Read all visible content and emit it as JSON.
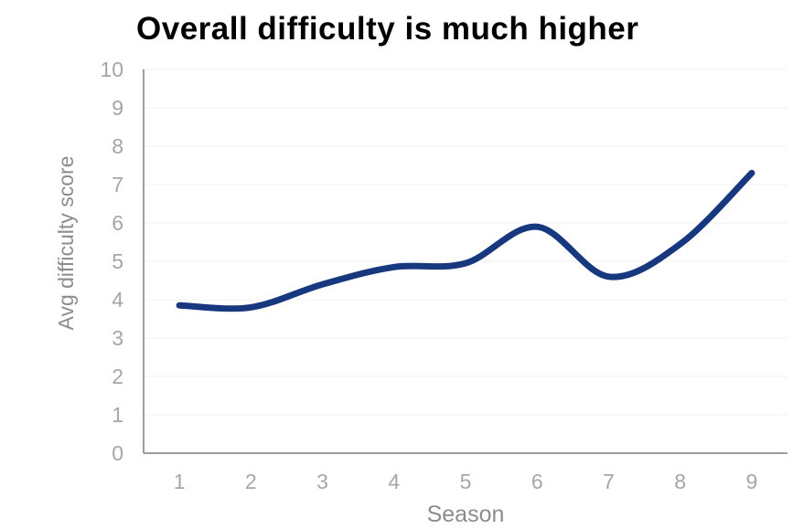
{
  "chart_data": {
    "type": "line",
    "title": "Overall difficulty is much higher",
    "xlabel": "Season",
    "ylabel": "Avg difficulty score",
    "x": [
      1,
      2,
      3,
      4,
      5,
      6,
      7,
      8,
      9
    ],
    "series": [
      {
        "name": "Avg difficulty score",
        "values": [
          3.85,
          3.8,
          4.4,
          4.85,
          4.95,
          5.9,
          4.6,
          5.45,
          7.3
        ]
      }
    ],
    "ylim": [
      0,
      10
    ],
    "y_ticks": [
      0,
      1,
      2,
      3,
      4,
      5,
      6,
      7,
      8,
      9,
      10
    ],
    "x_ticks": [
      1,
      2,
      3,
      4,
      5,
      6,
      7,
      8,
      9
    ],
    "grid": "horizontal",
    "legend_position": "none",
    "smooth": true,
    "line_color": "#17387E"
  },
  "colors": {
    "title_text": "#000000",
    "tick_label": "#a6a6a6",
    "axis_title": "#8c8c8c",
    "axis_line": "#7f7f7f",
    "gridline": "#f0f0f0",
    "background": "#ffffff"
  }
}
